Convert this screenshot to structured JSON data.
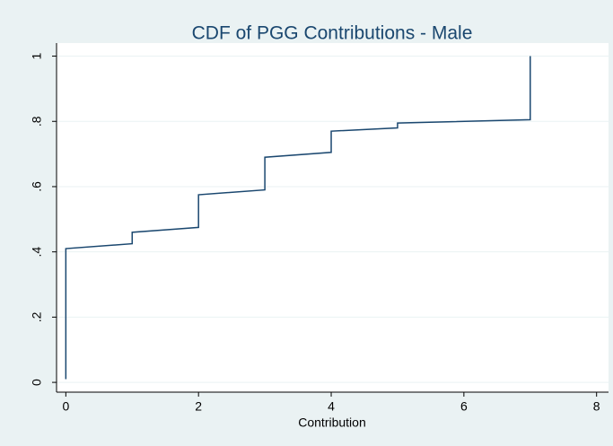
{
  "chart_data": {
    "type": "line",
    "title": "CDF of PGG Contributions - Male",
    "x_label": "Contribution",
    "series": [
      {
        "name": "CDF",
        "color": "#1a476f",
        "x": [
          0,
          0,
          1,
          1,
          2,
          2,
          3,
          3,
          4,
          4,
          5,
          5,
          7,
          7
        ],
        "values": [
          0.01,
          0.41,
          0.425,
          0.46,
          0.475,
          0.575,
          0.59,
          0.69,
          0.705,
          0.77,
          0.78,
          0.795,
          0.805,
          1
        ]
      }
    ],
    "xlim": [
      -0.14,
      8.18
    ],
    "xticks": [
      0,
      2,
      4,
      6,
      8
    ],
    "ylim": [
      -0.03,
      1.04
    ],
    "yticks": [
      0,
      {
        "value": 0.2,
        "label": ".2"
      },
      {
        "value": 0.4,
        "label": ".4"
      },
      {
        "value": 0.6,
        "label": ".6"
      },
      {
        "value": 0.8,
        "label": ".8"
      },
      1
    ],
    "grid": true
  }
}
